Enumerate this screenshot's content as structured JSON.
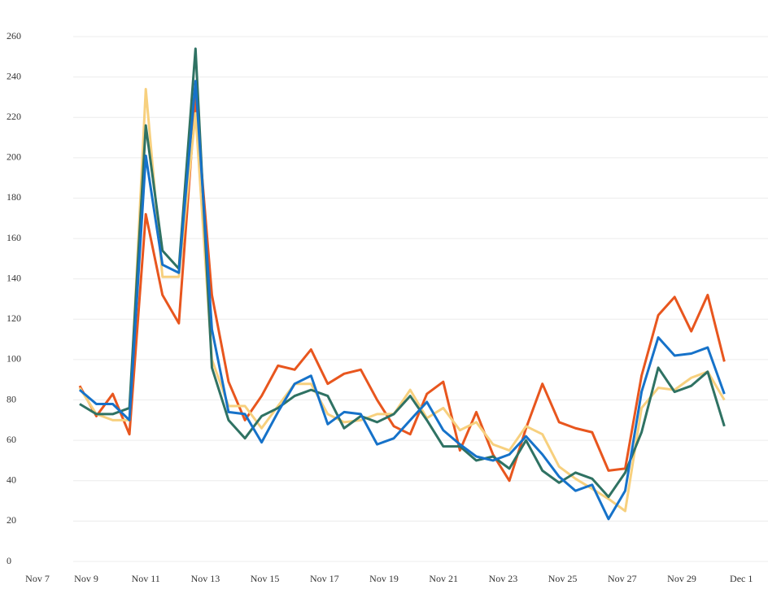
{
  "chart_data": {
    "type": "line",
    "x": [
      8.78,
      9.34,
      9.89,
      10.45,
      11.0,
      11.56,
      12.11,
      12.67,
      13.22,
      13.78,
      14.33,
      14.89,
      15.44,
      16.0,
      16.55,
      17.11,
      17.66,
      18.22,
      18.77,
      19.33,
      19.88,
      20.44,
      20.99,
      21.55,
      22.1,
      22.66,
      23.21,
      23.77,
      24.32,
      24.88,
      25.43,
      25.99,
      26.54,
      27.1,
      27.65,
      28.21,
      28.76,
      29.32,
      29.87,
      30.43
    ],
    "series": [
      {
        "color": "#e8561e",
        "values": [
          87,
          72,
          83,
          63,
          172,
          132,
          118,
          230,
          132,
          89,
          70,
          82,
          97,
          95,
          105,
          88,
          93,
          95,
          80,
          67,
          63,
          83,
          89,
          55,
          74,
          53,
          40,
          66,
          88,
          69,
          66,
          64,
          45,
          46,
          92,
          122,
          131,
          114,
          132,
          99
        ]
      },
      {
        "color": "#f7d07e",
        "values": [
          86,
          73,
          70,
          70,
          234,
          141,
          141,
          222,
          100,
          77,
          77,
          66,
          77,
          88,
          88,
          73,
          69,
          70,
          73,
          73,
          85,
          71,
          76,
          65,
          69,
          58,
          55,
          67,
          63,
          47,
          41,
          36,
          31,
          25,
          76,
          86,
          85,
          91,
          94,
          80
        ]
      },
      {
        "color": "#2f7263",
        "values": [
          78,
          73,
          73,
          76,
          216,
          154,
          145,
          254,
          96,
          70,
          61,
          72,
          76,
          82,
          85,
          82,
          66,
          72,
          69,
          73,
          82,
          70,
          57,
          57,
          50,
          52,
          46,
          60,
          45,
          39,
          44,
          41,
          32,
          44,
          64,
          96,
          84,
          87,
          94,
          67
        ]
      },
      {
        "color": "#1672c9",
        "values": [
          85,
          78,
          78,
          70,
          201,
          147,
          143,
          238,
          115,
          74,
          73,
          59,
          74,
          88,
          92,
          68,
          74,
          73,
          58,
          61,
          70,
          79,
          65,
          58,
          52,
          50,
          53,
          62,
          53,
          42,
          35,
          38,
          21,
          35,
          84,
          111,
          102,
          103,
          106,
          83
        ]
      }
    ],
    "xlim": [
      7,
      31
    ],
    "xticks": [
      {
        "value": 7,
        "label": "Nov 7"
      },
      {
        "value": 9,
        "label": "Nov 9"
      },
      {
        "value": 11,
        "label": "Nov 11"
      },
      {
        "value": 13,
        "label": "Nov 13"
      },
      {
        "value": 15,
        "label": "Nov 15"
      },
      {
        "value": 17,
        "label": "Nov 17"
      },
      {
        "value": 19,
        "label": "Nov 19"
      },
      {
        "value": 21,
        "label": "Nov 21"
      },
      {
        "value": 23,
        "label": "Nov 23"
      },
      {
        "value": 25,
        "label": "Nov 25"
      },
      {
        "value": 27,
        "label": "Nov 27"
      },
      {
        "value": 29,
        "label": "Nov 29"
      },
      {
        "value": 31,
        "label": "Dec 1"
      }
    ],
    "ylim": [
      0,
      260
    ],
    "yticks": [
      0,
      20,
      40,
      60,
      80,
      100,
      120,
      140,
      160,
      180,
      200,
      220,
      240,
      260
    ],
    "grid": true
  }
}
